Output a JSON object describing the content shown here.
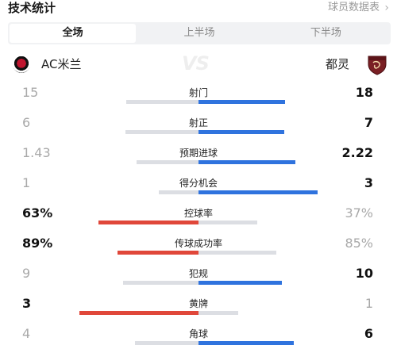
{
  "header": {
    "title": "技术统计",
    "link_label": "球员数据表",
    "link_chevron": "›"
  },
  "tabs": [
    {
      "label": "全场",
      "active": true
    },
    {
      "label": "上半场",
      "active": false
    },
    {
      "label": "下半场",
      "active": false
    }
  ],
  "teams": {
    "home": "AC米兰",
    "vs": "VS",
    "away": "都灵"
  },
  "colors": {
    "blue": "#2f73de",
    "red": "#e0473a",
    "grey": "#dcdee3"
  },
  "stats": [
    {
      "label": "射门",
      "home": "15",
      "away": "18",
      "home_num": 15,
      "away_num": 18,
      "leader": "away"
    },
    {
      "label": "射正",
      "home": "6",
      "away": "7",
      "home_num": 6,
      "away_num": 7,
      "leader": "away"
    },
    {
      "label": "预期进球",
      "home": "1.43",
      "away": "2.22",
      "home_num": 1.43,
      "away_num": 2.22,
      "leader": "away"
    },
    {
      "label": "得分机会",
      "home": "1",
      "away": "3",
      "home_num": 1,
      "away_num": 3,
      "leader": "away"
    },
    {
      "label": "控球率",
      "home": "63%",
      "away": "37%",
      "home_num": 63,
      "away_num": 37,
      "leader": "home"
    },
    {
      "label": "传球成功率",
      "home": "89%",
      "away": "85%",
      "home_num": 89,
      "away_num": 85,
      "leader": "home"
    },
    {
      "label": "犯规",
      "home": "9",
      "away": "10",
      "home_num": 9,
      "away_num": 10,
      "leader": "away"
    },
    {
      "label": "黄牌",
      "home": "3",
      "away": "1",
      "home_num": 3,
      "away_num": 1,
      "leader": "home"
    },
    {
      "label": "角球",
      "home": "4",
      "away": "6",
      "home_num": 4,
      "away_num": 6,
      "leader": "away"
    }
  ]
}
